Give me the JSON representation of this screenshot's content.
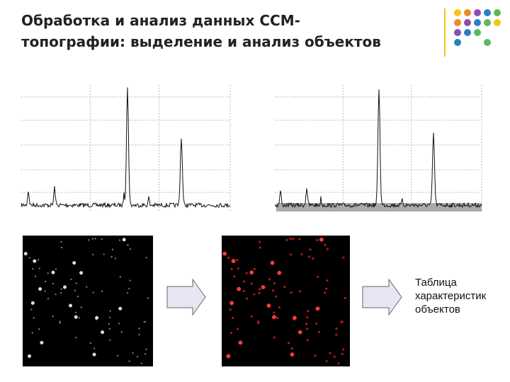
{
  "header": {
    "title_lines": [
      "Обработка и анализ данных ССМ-",
      "топографии: выделение и анализ объектов"
    ]
  },
  "result_label": {
    "lines": [
      "Таблица",
      "характеристик",
      "объектов"
    ]
  }
}
